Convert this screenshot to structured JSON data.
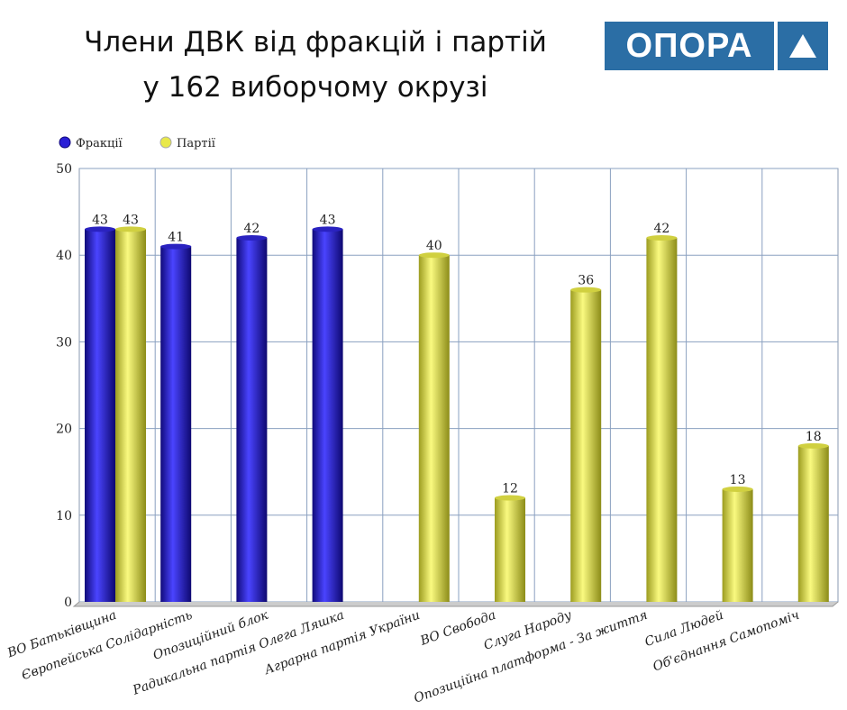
{
  "title_line1": "Члени ДВК  від фракцій і партій",
  "title_line2": "у 162 виборчому окрузі",
  "logo_text": "ОПОРА",
  "chart_data": {
    "type": "bar",
    "title": "Члени ДВК від фракцій і партій у 162 виборчому окрузі",
    "categories": [
      "ВО Батьківщина",
      "Європейська Солідарність",
      "Опозиційний блок",
      "Радикальна партія Олега Ляшка",
      "Аграрна партія України",
      "ВО Свобода",
      "Слуга Народу",
      "Опозиційна платформа - За життя",
      "Сила Людей",
      "Об'єднання Самопоміч"
    ],
    "series": [
      {
        "name": "Фракції",
        "color": "#2a1fd6",
        "values": [
          43,
          41,
          42,
          43,
          null,
          null,
          null,
          null,
          null,
          null
        ]
      },
      {
        "name": "Партії",
        "color": "#e8e84a",
        "values": [
          43,
          null,
          null,
          null,
          40,
          12,
          36,
          42,
          13,
          18
        ]
      }
    ],
    "ylim": [
      0,
      50
    ],
    "yticks": [
      0,
      10,
      20,
      30,
      40,
      50
    ],
    "grid": true,
    "legend": "top-left",
    "xlabel": "",
    "ylabel": ""
  }
}
